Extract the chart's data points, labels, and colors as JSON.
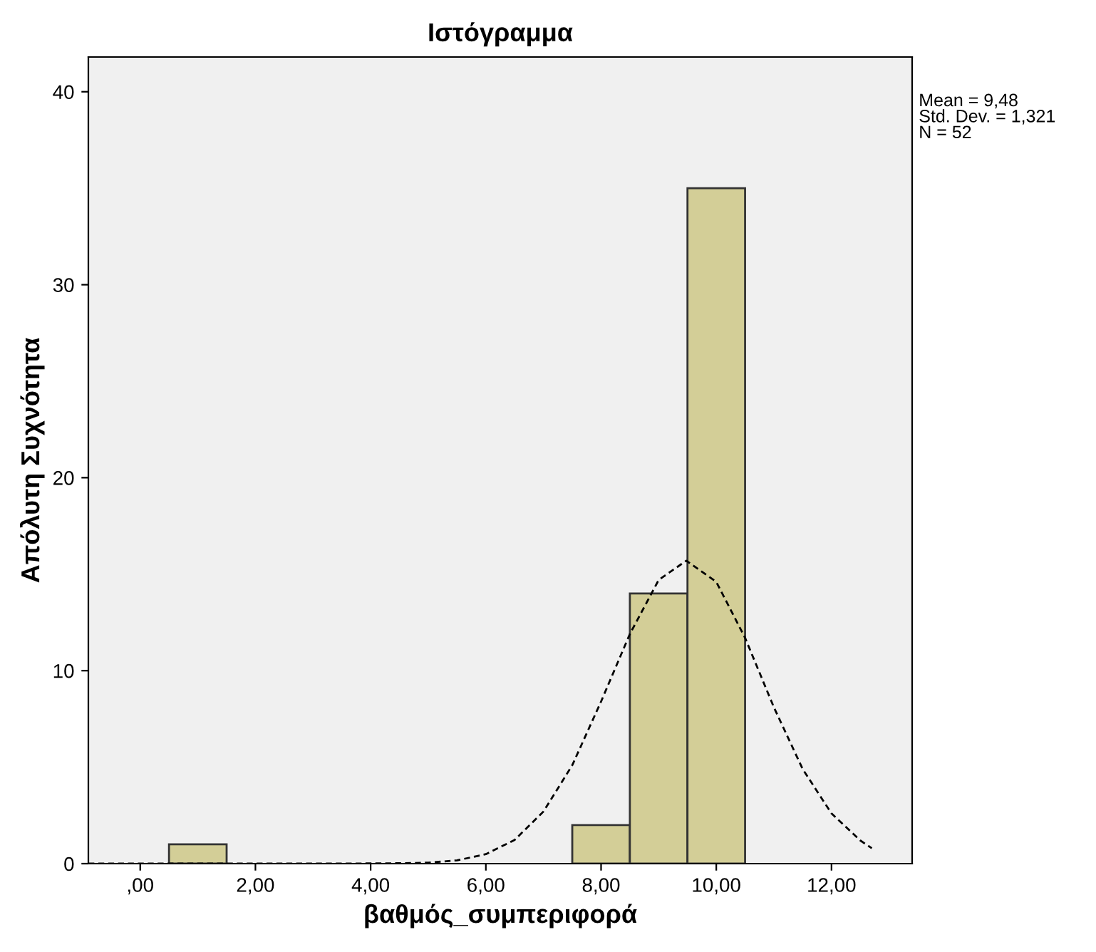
{
  "chart_data": {
    "type": "histogram",
    "title": "Ιστόγραμμα",
    "xlabel": "βαθμός_συμπεριφορά",
    "ylabel": "Απόλυτη Συχνότητα",
    "bins": [
      0.5,
      1.5,
      2.5,
      3.5,
      4.5,
      5.5,
      6.5,
      7.5,
      8.5,
      9.5,
      10.5
    ],
    "values": [
      1,
      0,
      0,
      0,
      0,
      0,
      0,
      2,
      14,
      35
    ],
    "color": "#d3ce97",
    "series": [
      {
        "type": "line",
        "line_style": "dashed",
        "color": "#000000",
        "x": [
          -0.9,
          1,
          2,
          3,
          4,
          4.5,
          5,
          5.5,
          6,
          6.5,
          7,
          7.5,
          8,
          8.5,
          9,
          9.48,
          10,
          10.5,
          11,
          11.5,
          12,
          12.5,
          12.7
        ],
        "values": [
          0,
          0,
          0,
          0,
          0.01,
          0.02,
          0.05,
          0.17,
          0.49,
          1.23,
          2.7,
          5.1,
          8.4,
          11.9,
          14.7,
          15.7,
          14.6,
          11.7,
          8.1,
          4.9,
          2.6,
          1.2,
          0.8
        ]
      }
    ],
    "xlim": [
      -0.9,
      13.4
    ],
    "ylim": [
      0,
      41.8
    ],
    "xticks": [
      {
        "value": 0,
        "label": ",00"
      },
      {
        "value": 2,
        "label": "2,00"
      },
      {
        "value": 4,
        "label": "4,00"
      },
      {
        "value": 6,
        "label": "6,00"
      },
      {
        "value": 8,
        "label": "8,00"
      },
      {
        "value": 10,
        "label": "10,00"
      },
      {
        "value": 12,
        "label": "12,00"
      }
    ],
    "yticks": [
      0,
      10,
      20,
      30,
      40
    ],
    "annotations": [
      "Mean = 9,48\nStd. Dev. = 1,321\nN = 52"
    ],
    "grid": false
  }
}
